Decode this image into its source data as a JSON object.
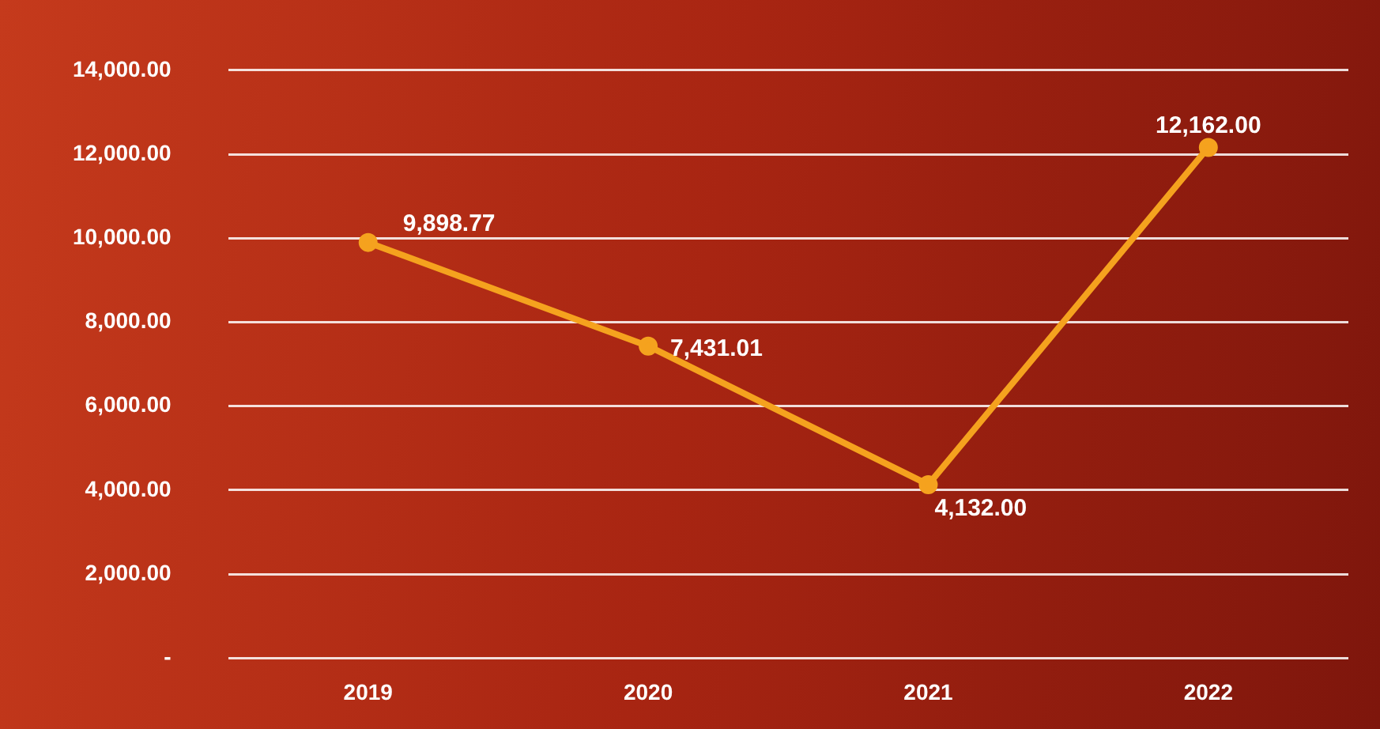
{
  "chart_data": {
    "type": "line",
    "categories": [
      "2019",
      "2020",
      "2021",
      "2022"
    ],
    "series": [
      {
        "color": "#f5a21e",
        "values": [
          9898.77,
          7431.01,
          4132,
          12162
        ],
        "value_labels": [
          "9,898.77",
          "7,431.01",
          "4,132.00",
          "12,162.00"
        ]
      }
    ],
    "ylim": [
      0,
      14000
    ],
    "yticks": [
      {
        "value": 0,
        "label": "-"
      },
      {
        "value": 2000,
        "label": "2,000.00"
      },
      {
        "value": 4000,
        "label": "4,000.00"
      },
      {
        "value": 6000,
        "label": "6,000.00"
      },
      {
        "value": 8000,
        "label": "8,000.00"
      },
      {
        "value": 10000,
        "label": "10,000.00"
      },
      {
        "value": 12000,
        "label": "12,000.00"
      },
      {
        "value": 14000,
        "label": "14,000.00"
      }
    ],
    "grid": "y",
    "legend": false,
    "marker": "circle",
    "line_style": "solid"
  }
}
